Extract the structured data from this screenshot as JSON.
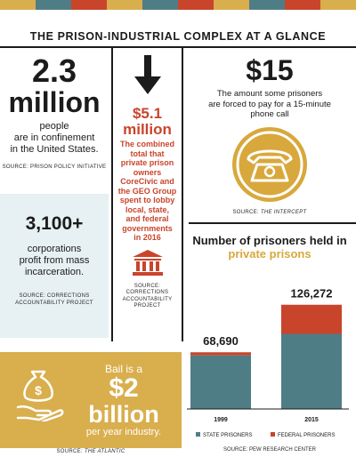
{
  "colors": {
    "teal": "#4f7d86",
    "red": "#c8452b",
    "gold": "#d8a83c",
    "light_blue": "#e7f0f2",
    "dark": "#1b1b1b"
  },
  "top_bar_colors": [
    "#d9ae4d",
    "#4f7d86",
    "#c8452b",
    "#d9ae4d",
    "#4f7d86",
    "#c8452b",
    "#d9ae4d",
    "#4f7d86",
    "#c8452b",
    "#d9ae4d"
  ],
  "header": {
    "title": "THE PRISON-INDUSTRIAL COMPLEX AT A GLANCE"
  },
  "stat_people": {
    "number": "2.3",
    "unit": "million",
    "line1": "people",
    "line2": "are in confinement",
    "line3": "in the United States.",
    "source": "SOURCE: PRISON POLICY INITIATIVE"
  },
  "stat_corporations": {
    "number": "3,100+",
    "line1": "corporations",
    "line2": "profit from mass",
    "line3": "incarceration.",
    "source_line1": "SOURCE: CORRECTIONS",
    "source_line2": "ACCOUNTABILITY PROJECT"
  },
  "stat_lobby": {
    "number": "$5.1",
    "unit": "million",
    "desc1": "The combined",
    "desc2": "total that",
    "desc3": "private prison",
    "desc4": "owners",
    "desc5": "CoreCivic and",
    "desc6": "the GEO Group",
    "desc7": "spent to lobby",
    "desc8": "local, state,",
    "desc9": "and federal",
    "desc10": "governments",
    "desc11": "in 2016",
    "source_line1": "SOURCE:",
    "source_line2": "CORRECTIONS",
    "source_line3": "ACCOUNTABILITY",
    "source_line4": "PROJECT",
    "arrow_icon": "arrow-down-icon",
    "building_icon": "government-building-icon"
  },
  "stat_phone": {
    "number": "$15",
    "line1": "The amount some prisoners",
    "line2": "are forced to pay for a 15-minute",
    "line3": "phone call",
    "source_prefix": "SOURCE: ",
    "source_name": "THE INTERCEPT",
    "icon": "telephone-icon"
  },
  "stat_bail": {
    "line1": "Bail is a",
    "number": "$2",
    "unit": "billion",
    "line2": "per year industry.",
    "source_prefix": "SOURCE: ",
    "source_name": "THE ATLANTIC",
    "icon": "money-hand-icon"
  },
  "chart_data": {
    "type": "bar",
    "title_line1": "Number of prisoners held in",
    "title_line2": "private prisons",
    "categories": [
      "1999",
      "2015"
    ],
    "totals": [
      "68,690",
      "126,272"
    ],
    "series": [
      {
        "name": "STATE PRISONERS",
        "values": [
          65000,
          91000
        ]
      },
      {
        "name": "FEDERAL PRISONERS",
        "values": [
          3690,
          35272
        ]
      }
    ],
    "ylim": [
      0,
      140000
    ],
    "legend_position": "bottom",
    "source": "SOURCE: PEW RESEARCH CENTER"
  }
}
